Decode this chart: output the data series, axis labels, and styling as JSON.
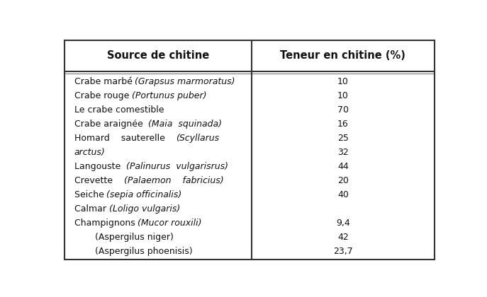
{
  "title_col1": "Source de chitine",
  "title_col2": "Teneur en chitine (%)",
  "rows": [
    {
      "col1_plain": "Crabe marbé́ ",
      "col1_italic": "(Grapsus marmoratus)",
      "col2": "10"
    },
    {
      "col1_plain": "Crabe rouge ",
      "col1_italic": "(Portunus puber)",
      "col2": "10"
    },
    {
      "col1_plain": "Le crabe comestible",
      "col1_italic": "",
      "col2": "70"
    },
    {
      "col1_plain": "Crabe araignée  ",
      "col1_italic": "(Maia  squinada)",
      "col2": "16"
    },
    {
      "col1_plain": "Homard    sauterelle    ",
      "col1_italic": "(Scyllarus",
      "col2": "25"
    },
    {
      "col1_plain": "arctus)",
      "col1_italic": "",
      "col2": "32",
      "italic_row": true
    },
    {
      "col1_plain": "Langouste  ",
      "col1_italic": "(Palinurus  vulgarisrus)",
      "col2": "44"
    },
    {
      "col1_plain": "Crevette    ",
      "col1_italic": "(Palaemon    fabricius)",
      "col2": "20"
    },
    {
      "col1_plain": "Seiche ",
      "col1_italic": "(sepia officinalis)",
      "col2": "40"
    },
    {
      "col1_plain": "Calmar ",
      "col1_italic": "(Loligo vulgaris)",
      "col2": ""
    },
    {
      "col1_plain": "Champignons ",
      "col1_italic": "(Mucor rouxili)",
      "col2": "9,4"
    },
    {
      "col1_plain": "    (Aspergilus niger)",
      "col1_italic": "",
      "col2": "42",
      "indent": true
    },
    {
      "col1_plain": "    (Aspergilus phoenisis)",
      "col1_italic": "",
      "col2": "23,7",
      "indent": true
    }
  ],
  "bg_color": "#ffffff",
  "border_color": "#333333",
  "text_color": "#111111",
  "col_split": 0.505,
  "figsize": [
    6.87,
    4.2
  ],
  "dpi": 100,
  "font_size_header": 10.5,
  "font_size_body": 9.0
}
